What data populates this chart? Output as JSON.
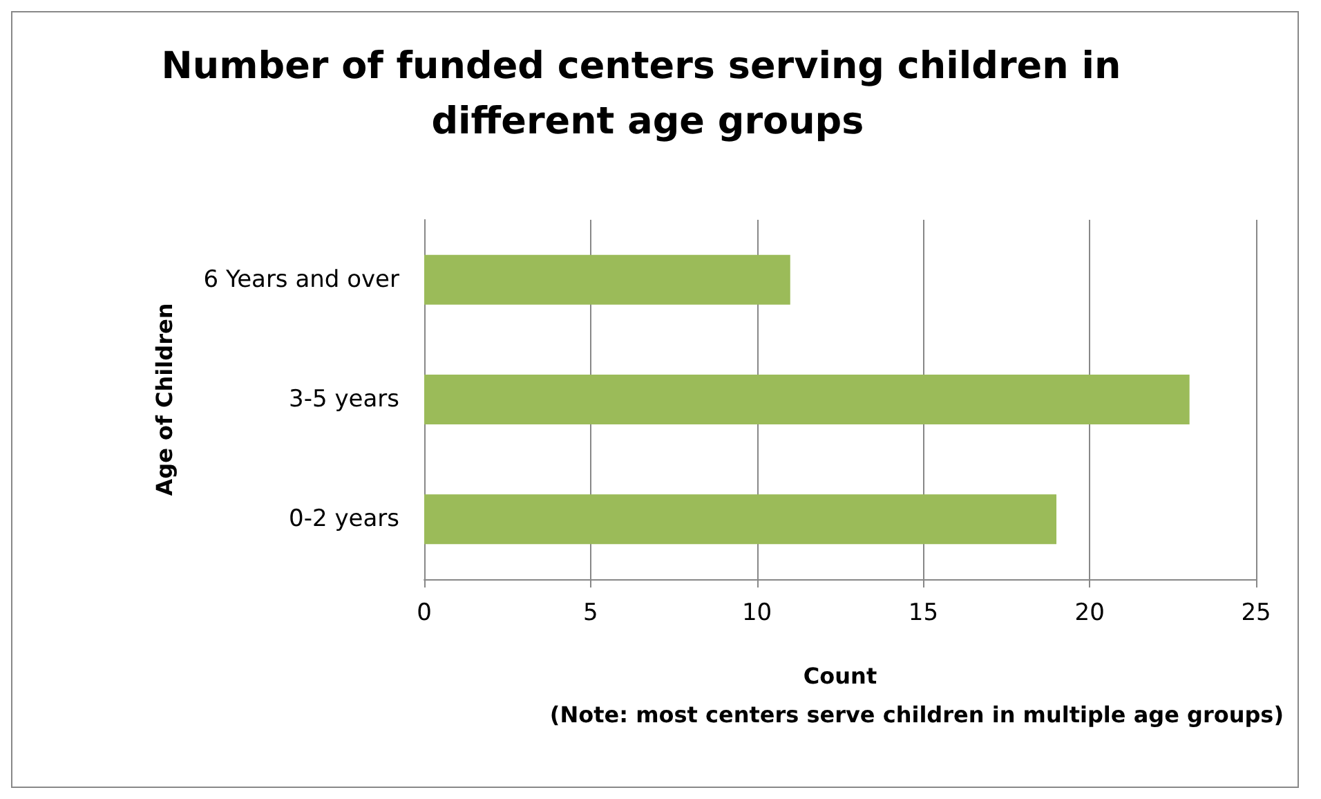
{
  "chart_data": {
    "type": "bar",
    "orientation": "horizontal",
    "title": "Number of funded centers serving children in different age groups",
    "xlabel": "Count",
    "ylabel": "Age of Children",
    "annotations": [
      "(Note: most centers serve children in multiple age groups)"
    ],
    "categories": [
      "6 Years and over",
      "3-5 years",
      "0-2 years"
    ],
    "values": [
      11,
      23,
      19
    ],
    "color": "#9bbb59",
    "xlim": [
      0,
      25
    ],
    "xticks": [
      0,
      5,
      10,
      15,
      20,
      25
    ],
    "grid": "x"
  }
}
